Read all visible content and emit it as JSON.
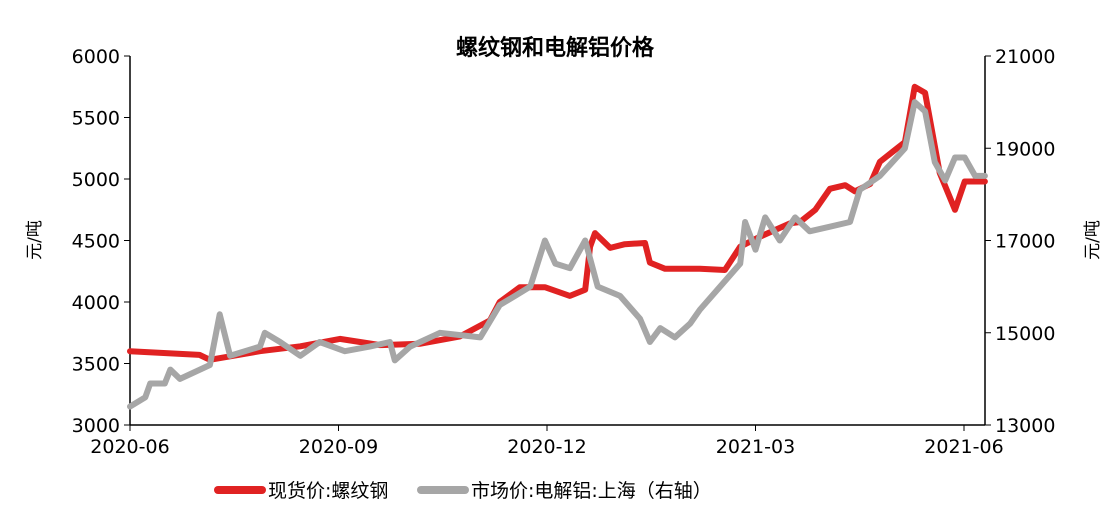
{
  "chart_data": {
    "type": "line",
    "title": "螺纹钢和电解铝价格",
    "ylabel_left": "元/吨",
    "ylabel_right": "元/吨",
    "x_unit": "months since 2020-06",
    "xlim": [
      0,
      12.3
    ],
    "x_ticks": [
      {
        "x": 0,
        "label": "2020-06"
      },
      {
        "x": 3,
        "label": "2020-09"
      },
      {
        "x": 6,
        "label": "2020-12"
      },
      {
        "x": 9,
        "label": "2021-03"
      },
      {
        "x": 12,
        "label": "2021-06"
      }
    ],
    "ylim_left": [
      3000,
      6000
    ],
    "y_ticks_left": [
      "3000",
      "3500",
      "4000",
      "4500",
      "5000",
      "5500",
      "6000"
    ],
    "ylim_right": [
      13000,
      21000
    ],
    "y_ticks_right": [
      "13000",
      "15000",
      "17000",
      "19000",
      "21000"
    ],
    "legend_position": "bottom",
    "colors": {
      "steel": "#e02222",
      "aluminium": "#a6a6a6"
    },
    "series": [
      {
        "name": "现货价:螺纹钢",
        "axis": "left",
        "x": [
          0,
          1.0,
          1.15,
          1.87,
          2.45,
          3.02,
          3.6,
          4.17,
          4.75,
          5.18,
          5.32,
          5.61,
          5.97,
          6.33,
          6.55,
          6.62,
          6.69,
          6.91,
          7.12,
          7.41,
          7.48,
          7.7,
          8.2,
          8.56,
          8.78,
          9.06,
          9.5,
          9.64,
          9.86,
          10.07,
          10.29,
          10.43,
          10.65,
          10.79,
          11.15,
          11.29,
          11.44,
          11.65,
          11.87,
          12.01,
          12.3
        ],
        "values": [
          3600,
          3570,
          3530,
          3600,
          3640,
          3700,
          3650,
          3660,
          3720,
          3850,
          4000,
          4120,
          4120,
          4050,
          4100,
          4450,
          4560,
          4440,
          4470,
          4480,
          4320,
          4270,
          4270,
          4260,
          4450,
          4530,
          4640,
          4650,
          4750,
          4920,
          4950,
          4900,
          4960,
          5140,
          5300,
          5750,
          5700,
          5050,
          4750,
          4980,
          4980
        ]
      },
      {
        "name": "市场价:电解铝:上海（右轴）",
        "axis": "right",
        "x": [
          0,
          0.22,
          0.29,
          0.5,
          0.58,
          0.72,
          1.15,
          1.29,
          1.44,
          1.87,
          1.94,
          2.16,
          2.45,
          2.73,
          3.09,
          3.45,
          3.74,
          3.81,
          4.03,
          4.46,
          5.04,
          5.32,
          5.54,
          5.76,
          5.97,
          6.12,
          6.33,
          6.55,
          6.73,
          7.05,
          7.34,
          7.48,
          7.63,
          7.84,
          8.06,
          8.2,
          8.49,
          8.78,
          8.85,
          9.0,
          9.14,
          9.35,
          9.57,
          9.78,
          10.07,
          10.36,
          10.5,
          10.79,
          11.15,
          11.29,
          11.44,
          11.58,
          11.73,
          11.87,
          12.01,
          12.16,
          12.3
        ],
        "values": [
          13400,
          13600,
          13900,
          13900,
          14200,
          14000,
          14300,
          15400,
          14500,
          14700,
          15000,
          14800,
          14500,
          14800,
          14600,
          14700,
          14800,
          14400,
          14700,
          15000,
          14900,
          15600,
          15800,
          16000,
          17000,
          16500,
          16400,
          17000,
          16000,
          15800,
          15300,
          14800,
          15100,
          14900,
          15200,
          15500,
          16000,
          16500,
          17400,
          16800,
          17500,
          17000,
          17500,
          17200,
          17300,
          17400,
          18100,
          18400,
          19000,
          20000,
          19800,
          18700,
          18300,
          18800,
          18800,
          18400,
          18400
        ]
      }
    ]
  }
}
